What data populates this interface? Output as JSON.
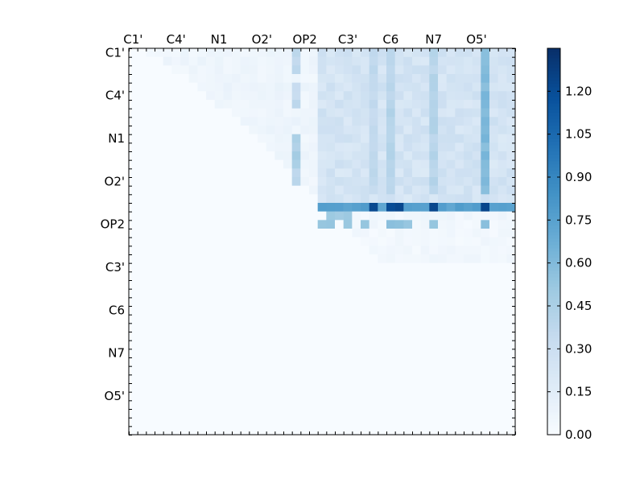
{
  "chart_data": {
    "type": "heatmap",
    "title": "",
    "xlabel": "",
    "ylabel": "",
    "grid_size": 45,
    "tick_labels": [
      "C1'",
      "C4'",
      "N1",
      "O2'",
      "OP2",
      "C3'",
      "C6",
      "N7",
      "O5'"
    ],
    "tick_positions": [
      0.5,
      5.5,
      10.5,
      15.5,
      20.5,
      25.5,
      30.5,
      35.5,
      40.5
    ],
    "x_tick_position": "top",
    "colormap": "Blues",
    "color_range": [
      0.0,
      1.35
    ],
    "colorbar": {
      "ticks": [
        0.0,
        0.15,
        0.3,
        0.45,
        0.6,
        0.75,
        0.9,
        1.05,
        1.2
      ],
      "tick_labels": [
        "0.00",
        "0.15",
        "0.30",
        "0.45",
        "0.60",
        "0.75",
        "0.90",
        "1.05",
        "1.20"
      ],
      "placement": "right"
    },
    "grid": false,
    "triangle": "upper",
    "note": "",
    "row_profiles": [
      {
        "row": 0,
        "from": 2,
        "base": 0.03,
        "to": 44
      },
      {
        "row": 1,
        "from": 4,
        "base": 0.04,
        "to": 44
      },
      {
        "row": 2,
        "from": 5,
        "base": 0.03,
        "to": 44
      },
      {
        "row": 3,
        "from": 7,
        "base": 0.03,
        "to": 44
      },
      {
        "row": 4,
        "from": 8,
        "base": 0.05,
        "to": 44
      },
      {
        "row": 5,
        "from": 9,
        "base": 0.04,
        "to": 44
      },
      {
        "row": 6,
        "from": 10,
        "base": 0.03,
        "to": 44
      },
      {
        "row": 7,
        "from": 12,
        "base": 0.04,
        "to": 44
      },
      {
        "row": 8,
        "from": 13,
        "base": 0.05,
        "to": 44
      },
      {
        "row": 9,
        "from": 14,
        "base": 0.04,
        "to": 44
      },
      {
        "row": 10,
        "from": 15,
        "base": 0.03,
        "to": 44
      },
      {
        "row": 11,
        "from": 16,
        "base": 0.04,
        "to": 44
      },
      {
        "row": 12,
        "from": 17,
        "base": 0.05,
        "to": 44
      },
      {
        "row": 13,
        "from": 18,
        "base": 0.04,
        "to": 44
      },
      {
        "row": 14,
        "from": 19,
        "base": 0.03,
        "to": 44
      },
      {
        "row": 15,
        "from": 20,
        "base": 0.03,
        "to": 44
      },
      {
        "row": 16,
        "from": 21,
        "base": 0.02,
        "to": 44
      },
      {
        "row": 17,
        "from": 22,
        "base": 0.02,
        "to": 44
      },
      {
        "row": 18,
        "from": 23,
        "base": 0.02,
        "to": 44
      },
      {
        "row": 19,
        "from": 24,
        "base": 0.02,
        "to": 44
      },
      {
        "row": 20,
        "from": 25,
        "base": 0.01,
        "to": 44
      },
      {
        "row": 21,
        "from": 26,
        "base": 0.01,
        "to": 44
      },
      {
        "row": 22,
        "from": 27,
        "base": 0.01,
        "to": 44
      },
      {
        "row": 23,
        "from": 28,
        "base": 0.01,
        "to": 44
      },
      {
        "row": 24,
        "from": 29,
        "base": 0.02,
        "to": 44
      }
    ],
    "highlights": [
      {
        "cells": [
          [
            0,
            19
          ],
          [
            1,
            19
          ],
          [
            2,
            19
          ]
        ],
        "value": 0.35
      },
      {
        "cells": [
          [
            4,
            19
          ],
          [
            5,
            19
          ],
          [
            6,
            19
          ]
        ],
        "value": 0.35
      },
      {
        "cells": [
          [
            10,
            19
          ],
          [
            11,
            19
          ],
          [
            12,
            19
          ],
          [
            13,
            19
          ]
        ],
        "value": 0.45
      },
      {
        "cells": [
          [
            14,
            19
          ],
          [
            15,
            19
          ]
        ],
        "value": 0.35
      },
      {
        "cells": [
          [
            0,
            41
          ],
          [
            1,
            41
          ],
          [
            2,
            41
          ],
          [
            3,
            41
          ],
          [
            4,
            41
          ],
          [
            5,
            41
          ],
          [
            6,
            41
          ],
          [
            7,
            41
          ],
          [
            8,
            41
          ],
          [
            9,
            41
          ],
          [
            10,
            41
          ],
          [
            11,
            41
          ],
          [
            12,
            41
          ],
          [
            13,
            41
          ],
          [
            14,
            41
          ],
          [
            15,
            41
          ],
          [
            16,
            41
          ]
        ],
        "value": 0.6
      },
      {
        "cells": [
          [
            0,
            28
          ],
          [
            1,
            28
          ],
          [
            2,
            28
          ],
          [
            3,
            28
          ],
          [
            4,
            28
          ],
          [
            5,
            28
          ],
          [
            6,
            28
          ],
          [
            7,
            28
          ],
          [
            8,
            28
          ],
          [
            9,
            28
          ],
          [
            10,
            28
          ],
          [
            11,
            28
          ],
          [
            12,
            28
          ],
          [
            13,
            28
          ],
          [
            14,
            28
          ],
          [
            15,
            28
          ],
          [
            16,
            28
          ]
        ],
        "value": 0.35
      },
      {
        "cells": [
          [
            0,
            30
          ],
          [
            1,
            30
          ],
          [
            2,
            30
          ],
          [
            3,
            30
          ],
          [
            4,
            30
          ],
          [
            5,
            30
          ],
          [
            6,
            30
          ],
          [
            7,
            30
          ],
          [
            8,
            30
          ],
          [
            9,
            30
          ],
          [
            10,
            30
          ],
          [
            11,
            30
          ],
          [
            12,
            30
          ],
          [
            13,
            30
          ],
          [
            14,
            30
          ],
          [
            15,
            30
          ],
          [
            16,
            30
          ]
        ],
        "value": 0.4
      },
      {
        "cells": [
          [
            0,
            35
          ],
          [
            1,
            35
          ],
          [
            2,
            35
          ],
          [
            3,
            35
          ],
          [
            4,
            35
          ],
          [
            5,
            35
          ],
          [
            6,
            35
          ],
          [
            7,
            35
          ],
          [
            8,
            35
          ],
          [
            9,
            35
          ],
          [
            10,
            35
          ],
          [
            11,
            35
          ],
          [
            12,
            35
          ],
          [
            13,
            35
          ],
          [
            14,
            35
          ],
          [
            15,
            35
          ],
          [
            16,
            35
          ]
        ],
        "value": 0.4
      },
      {
        "cells": [
          [
            18,
            22
          ],
          [
            18,
            23
          ],
          [
            18,
            24
          ],
          [
            18,
            25
          ],
          [
            18,
            26
          ],
          [
            18,
            27
          ],
          [
            18,
            28
          ],
          [
            18,
            29
          ],
          [
            18,
            30
          ],
          [
            18,
            31
          ],
          [
            18,
            32
          ],
          [
            18,
            33
          ],
          [
            18,
            34
          ],
          [
            18,
            35
          ],
          [
            18,
            36
          ],
          [
            18,
            37
          ],
          [
            18,
            38
          ],
          [
            18,
            39
          ],
          [
            18,
            40
          ],
          [
            18,
            41
          ],
          [
            18,
            42
          ],
          [
            18,
            43
          ],
          [
            18,
            44
          ]
        ],
        "value": 0.75
      },
      {
        "cells": [
          [
            18,
            28
          ],
          [
            18,
            30
          ],
          [
            18,
            31
          ],
          [
            18,
            35
          ],
          [
            18,
            41
          ]
        ],
        "value": 1.2
      },
      {
        "cells": [
          [
            19,
            23
          ],
          [
            19,
            24
          ],
          [
            19,
            25
          ]
        ],
        "value": 0.5
      },
      {
        "cells": [
          [
            20,
            22
          ],
          [
            20,
            23
          ],
          [
            20,
            25
          ],
          [
            20,
            27
          ],
          [
            20,
            30
          ],
          [
            20,
            31
          ],
          [
            20,
            32
          ],
          [
            20,
            35
          ],
          [
            20,
            41
          ]
        ],
        "value": 0.55
      }
    ],
    "dense_block": {
      "rows": [
        0,
        17
      ],
      "cols": [
        22,
        44
      ],
      "base": 0.18
    }
  }
}
